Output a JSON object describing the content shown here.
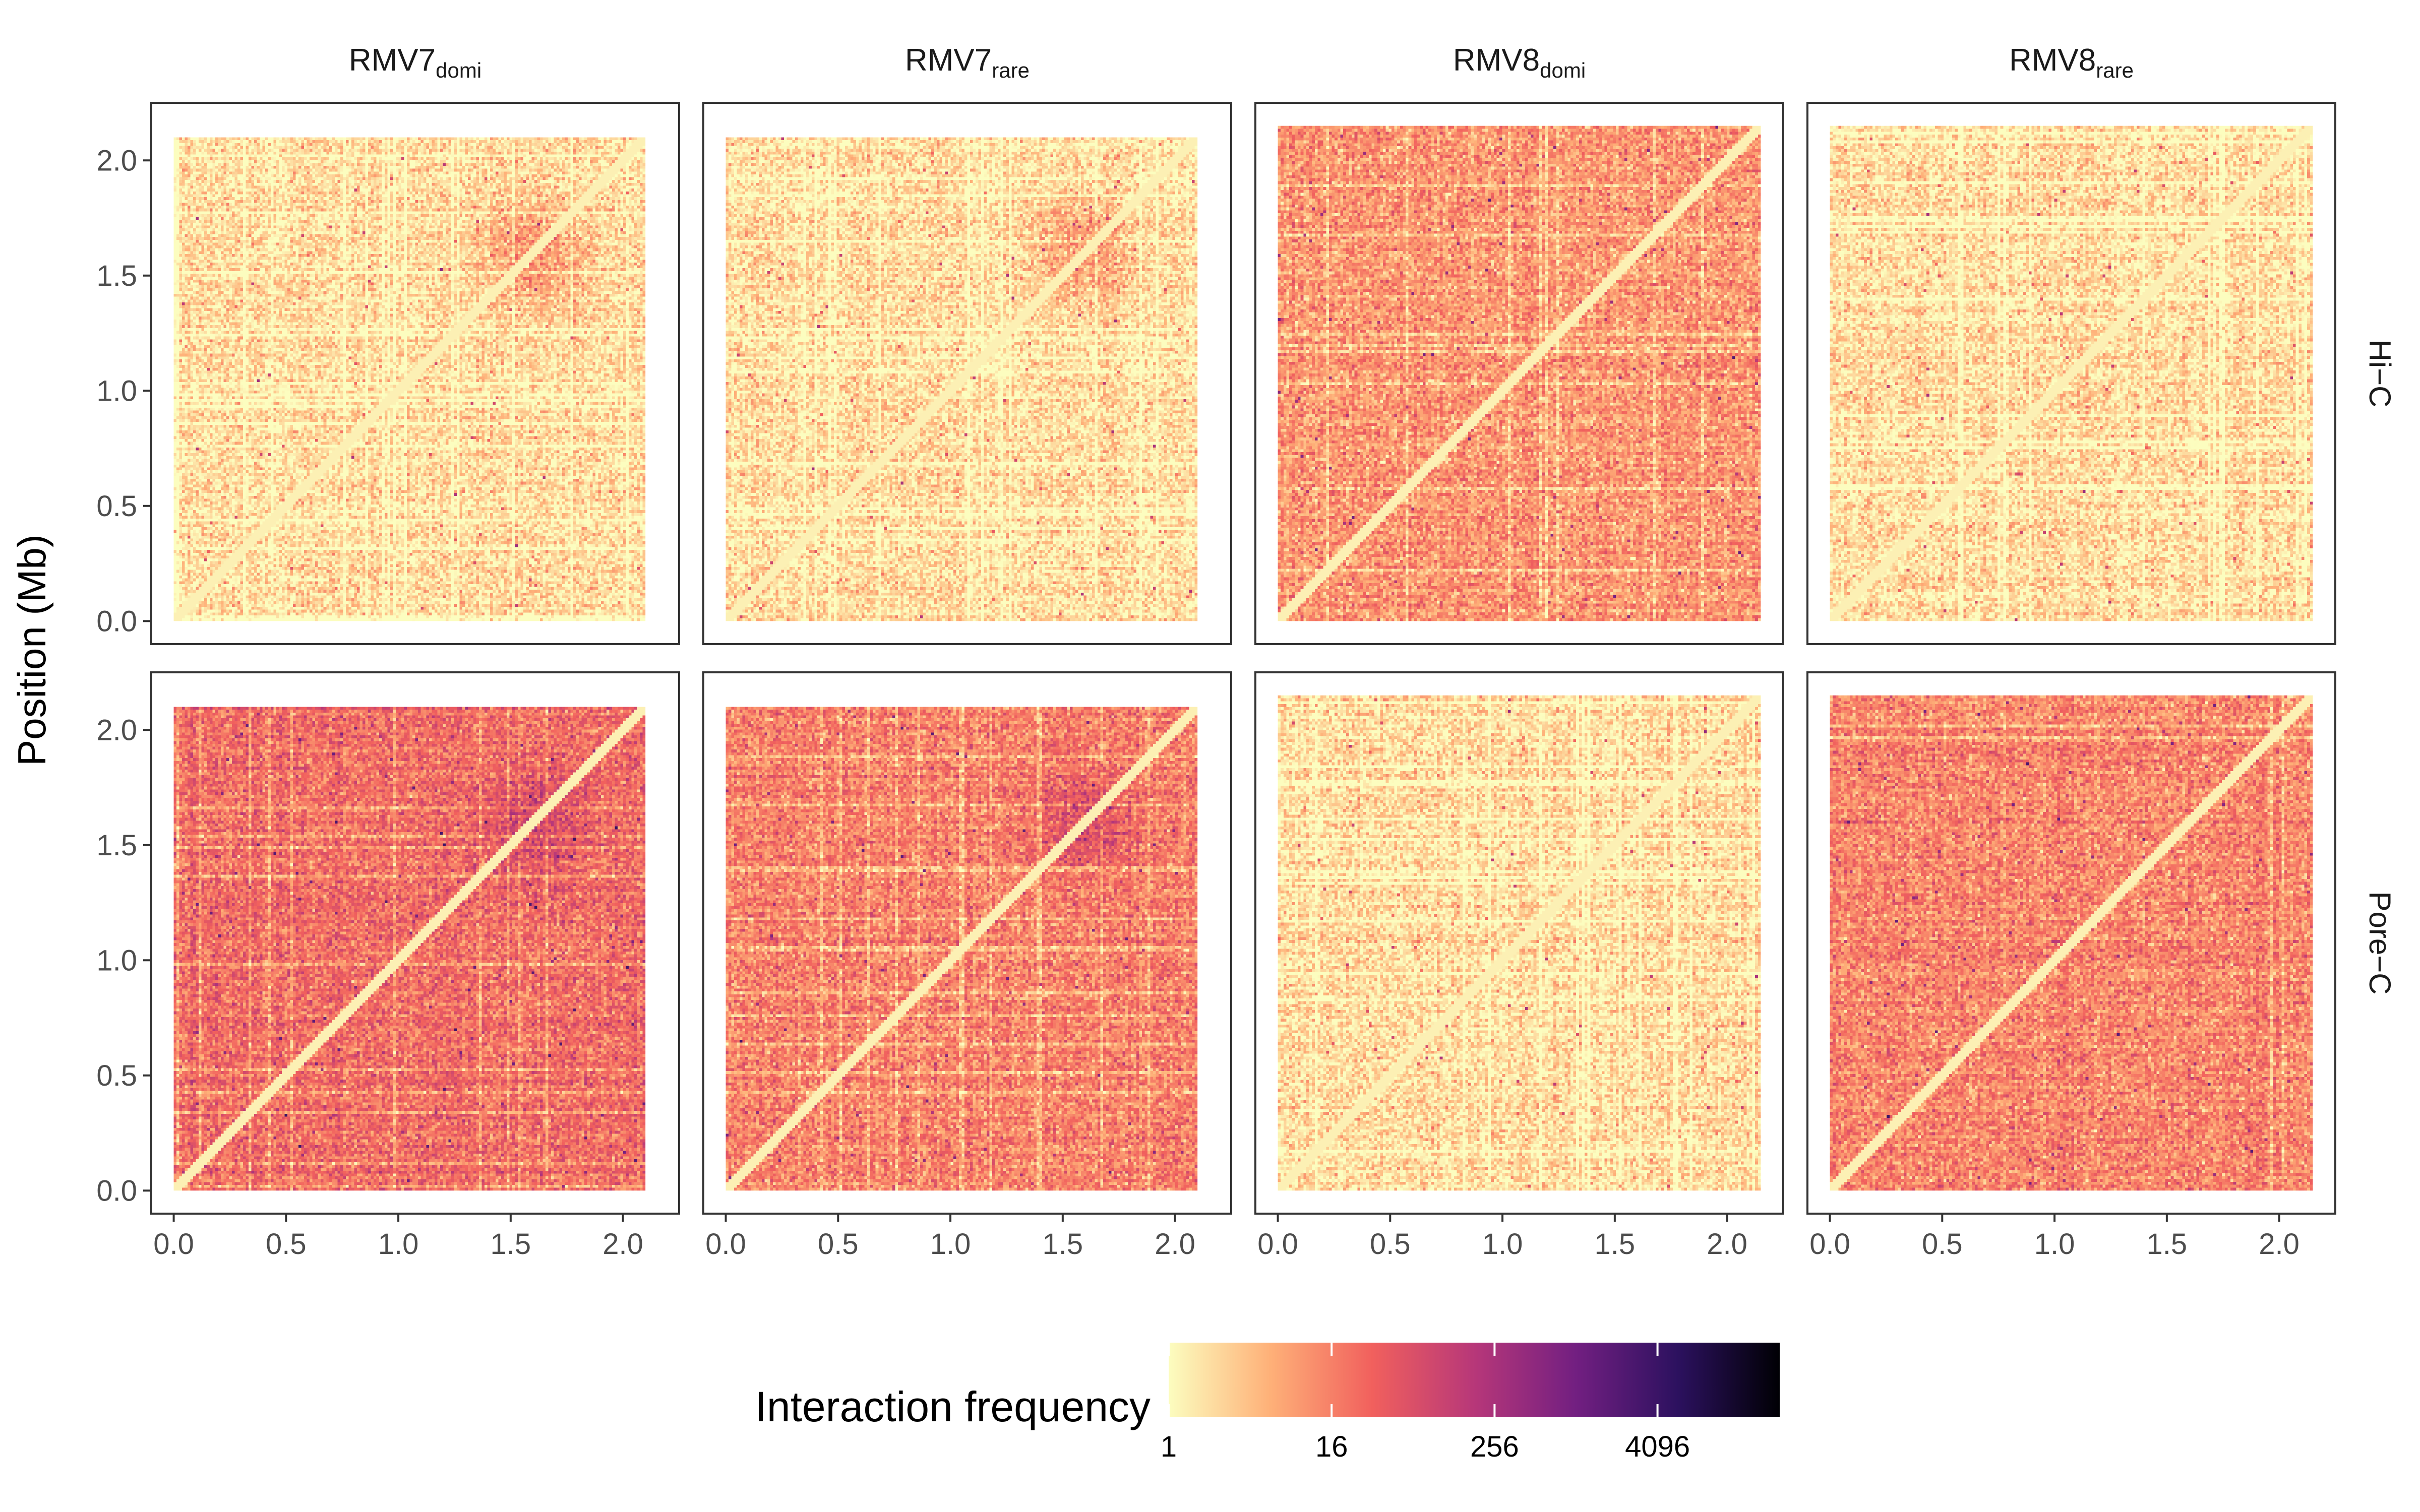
{
  "chart_data": {
    "type": "heatmap",
    "ylabel": "Position (Mb)",
    "xlabel": "",
    "columns": [
      {
        "base": "RMV7",
        "sub": "domi"
      },
      {
        "base": "RMV7",
        "sub": "rare"
      },
      {
        "base": "RMV8",
        "sub": "domi"
      },
      {
        "base": "RMV8",
        "sub": "rare"
      }
    ],
    "rows": [
      "Hi−C",
      "Pore−C"
    ],
    "x_ticks": [
      "0.0",
      "0.5",
      "1.0",
      "1.5",
      "2.0"
    ],
    "y_ticks": [
      "0.0",
      "0.5",
      "1.0",
      "1.5",
      "2.0"
    ],
    "x_tick_values": [
      0,
      0.5,
      1.0,
      1.5,
      2.0
    ],
    "y_tick_values": [
      0,
      0.5,
      1.0,
      1.5,
      2.0
    ],
    "axis_range": [
      -0.1,
      2.25
    ],
    "panels": [
      {
        "row": 0,
        "col": 0,
        "genome_length_mb": 2.1,
        "typical_frequency": 2,
        "hotspot_mb": 1.6
      },
      {
        "row": 0,
        "col": 1,
        "genome_length_mb": 2.1,
        "typical_frequency": 2,
        "hotspot_mb": 1.6
      },
      {
        "row": 0,
        "col": 2,
        "genome_length_mb": 2.15,
        "typical_frequency": 10,
        "hotspot_mb": null
      },
      {
        "row": 0,
        "col": 3,
        "genome_length_mb": 2.15,
        "typical_frequency": 2,
        "hotspot_mb": null
      },
      {
        "row": 1,
        "col": 0,
        "genome_length_mb": 2.1,
        "typical_frequency": 24,
        "hotspot_mb": 1.6
      },
      {
        "row": 1,
        "col": 1,
        "genome_length_mb": 2.1,
        "typical_frequency": 16,
        "hotspot_mb": 1.6
      },
      {
        "row": 1,
        "col": 2,
        "genome_length_mb": 2.15,
        "typical_frequency": 2,
        "hotspot_mb": null
      },
      {
        "row": 1,
        "col": 3,
        "genome_length_mb": 2.15,
        "typical_frequency": 14,
        "hotspot_mb": null
      }
    ],
    "legend": {
      "title": "Interaction frequency",
      "scale": "log2",
      "tick_labels": [
        "1",
        "16",
        "256",
        "4096"
      ],
      "tick_values": [
        1,
        16,
        256,
        4096
      ],
      "range": [
        1,
        32768
      ],
      "colormap": [
        "#fcfdbf",
        "#feb078",
        "#f1605d",
        "#b73779",
        "#721f81",
        "#2c115f",
        "#000004"
      ]
    }
  }
}
